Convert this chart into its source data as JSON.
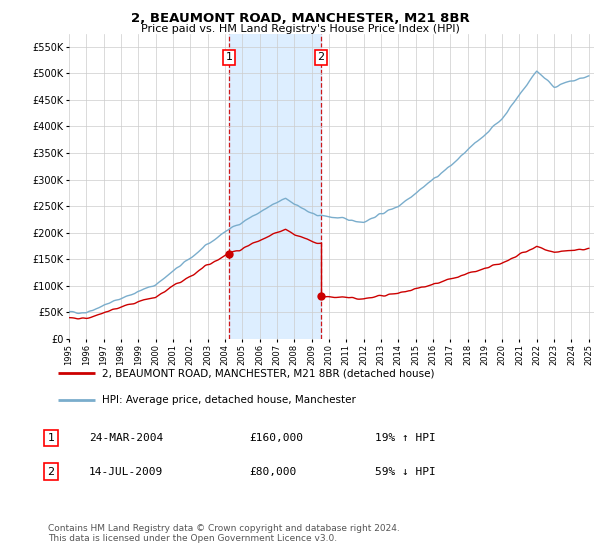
{
  "title": "2, BEAUMONT ROAD, MANCHESTER, M21 8BR",
  "subtitle": "Price paid vs. HM Land Registry's House Price Index (HPI)",
  "ylabel_ticks": [
    "£0",
    "£50K",
    "£100K",
    "£150K",
    "£200K",
    "£250K",
    "£300K",
    "£350K",
    "£400K",
    "£450K",
    "£500K",
    "£550K"
  ],
  "ytick_values": [
    0,
    50000,
    100000,
    150000,
    200000,
    250000,
    300000,
    350000,
    400000,
    450000,
    500000,
    550000
  ],
  "ylim": [
    0,
    575000
  ],
  "sale1_x": 2004.23,
  "sale1_price": 160000,
  "sale2_x": 2009.54,
  "sale2_price": 80000,
  "red_line_color": "#cc0000",
  "blue_line_color": "#7aadcc",
  "highlight_color": "#ddeeff",
  "vline_color": "#cc0000",
  "legend_label_red": "2, BEAUMONT ROAD, MANCHESTER, M21 8BR (detached house)",
  "legend_label_blue": "HPI: Average price, detached house, Manchester",
  "table_row1": [
    "1",
    "24-MAR-2004",
    "£160,000",
    "19% ↑ HPI"
  ],
  "table_row2": [
    "2",
    "14-JUL-2009",
    "£80,000",
    "59% ↓ HPI"
  ],
  "footer": "Contains HM Land Registry data © Crown copyright and database right 2024.\nThis data is licensed under the Open Government Licence v3.0.",
  "background_color": "#ffffff",
  "grid_color": "#cccccc"
}
